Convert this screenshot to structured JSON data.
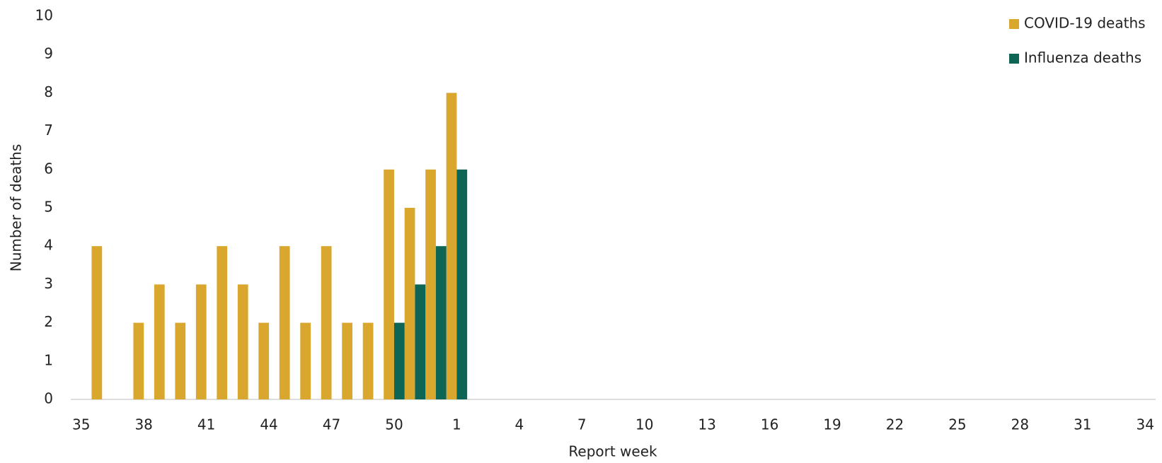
{
  "chart_data": {
    "type": "bar",
    "x_label": "Report week",
    "y_label": "Number of deaths",
    "categories": [
      "35",
      null,
      null,
      "38",
      null,
      null,
      "41",
      null,
      null,
      "44",
      null,
      null,
      "47",
      null,
      null,
      "50",
      null,
      null,
      "1",
      null,
      null,
      "4",
      null,
      null,
      "7",
      null,
      null,
      "10",
      null,
      null,
      "13",
      null,
      null,
      "16",
      null,
      null,
      "19",
      null,
      null,
      "22",
      null,
      null,
      "25",
      null,
      null,
      "28",
      null,
      null,
      "31",
      null,
      null,
      "34"
    ],
    "series": [
      {
        "name": "COVID-19 deaths",
        "color": "#d9a62e",
        "values": [
          0,
          4,
          0,
          2,
          3,
          2,
          3,
          4,
          3,
          2,
          4,
          2,
          4,
          2,
          2,
          6,
          5,
          6,
          8,
          null,
          null,
          null,
          null,
          null,
          null,
          null,
          null,
          null,
          null,
          null,
          null,
          null,
          null,
          null,
          null,
          null,
          null,
          null,
          null,
          null,
          null,
          null,
          null,
          null,
          null,
          null,
          null,
          null,
          null,
          null,
          null,
          null
        ]
      },
      {
        "name": "Influenza deaths",
        "color": "#0d6655",
        "values": [
          0,
          0,
          0,
          0,
          0,
          0,
          0,
          0,
          0,
          0,
          0,
          0,
          0,
          0,
          0,
          2,
          3,
          4,
          6,
          null,
          null,
          null,
          null,
          null,
          null,
          null,
          null,
          null,
          null,
          null,
          null,
          null,
          null,
          null,
          null,
          null,
          null,
          null,
          null,
          null,
          null,
          null,
          null,
          null,
          null,
          null,
          null,
          null,
          null,
          null,
          null,
          null
        ]
      }
    ],
    "ylim": [
      0,
      10
    ],
    "yticks": [
      0,
      1,
      2,
      3,
      4,
      5,
      6,
      7,
      8,
      9,
      10
    ],
    "grid": false,
    "legend": "top-right"
  }
}
